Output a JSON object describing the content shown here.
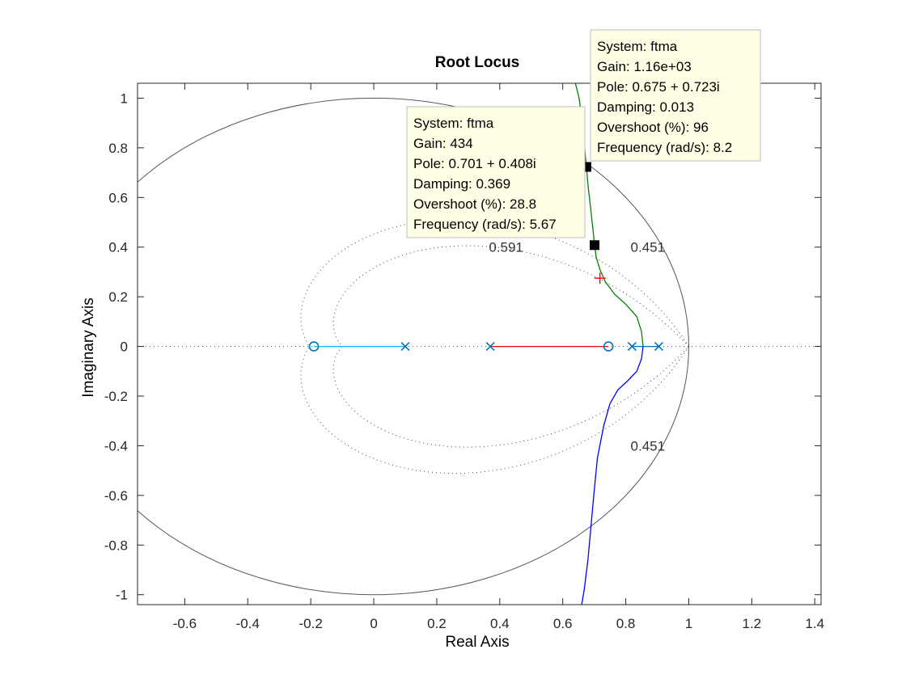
{
  "chart_data": {
    "type": "line",
    "title": "Root Locus",
    "xlabel": "Real Axis",
    "ylabel": "Imaginary Axis",
    "xlim": [
      -0.75,
      1.42
    ],
    "ylim": [
      -1.04,
      1.06
    ],
    "x_ticks": [
      -0.6,
      -0.4,
      -0.2,
      0,
      0.2,
      0.4,
      0.6,
      0.8,
      1,
      1.2,
      1.4
    ],
    "x_tick_labels": [
      "-0.6",
      "-0.4",
      "-0.2",
      "0",
      "0.2",
      "0.4",
      "0.6",
      "0.8",
      "1",
      "1.2",
      "1.4"
    ],
    "y_ticks": [
      1,
      0.8,
      0.6,
      0.4,
      0.2,
      0,
      -0.2,
      -0.4,
      -0.6,
      -0.8,
      -1
    ],
    "y_tick_labels": [
      "1",
      "0.8",
      "0.6",
      "0.4",
      "0.2",
      "0",
      "-0.2",
      "-0.4",
      "-0.6",
      "-0.8",
      "-1"
    ],
    "grid": "zgrid",
    "unit_circle": true,
    "poles": [
      [
        0.1,
        0
      ],
      [
        0.37,
        0
      ],
      [
        0.82,
        0
      ],
      [
        0.905,
        0
      ]
    ],
    "zeros": [
      [
        -0.19,
        0
      ],
      [
        0.745,
        0
      ]
    ],
    "series": [
      {
        "color": "#00bfff",
        "points": [
          [
            -0.19,
            0
          ],
          [
            0.1,
            0
          ]
        ]
      },
      {
        "color": "#0072bd",
        "points": [
          [
            0.82,
            0
          ],
          [
            0.905,
            0
          ]
        ]
      },
      {
        "color": "#ff0000",
        "points": [
          [
            0.37,
            0
          ],
          [
            0.745,
            0
          ]
        ]
      },
      {
        "color": "#008000",
        "points": [
          [
            0.855,
            0
          ],
          [
            0.85,
            0.06
          ],
          [
            0.835,
            0.12
          ],
          [
            0.8,
            0.17
          ],
          [
            0.765,
            0.21
          ],
          [
            0.735,
            0.26
          ],
          [
            0.718,
            0.31
          ],
          [
            0.706,
            0.36
          ],
          [
            0.701,
            0.408
          ],
          [
            0.695,
            0.48
          ],
          [
            0.688,
            0.56
          ],
          [
            0.681,
            0.64
          ],
          [
            0.675,
            0.723
          ],
          [
            0.668,
            0.82
          ],
          [
            0.66,
            0.92
          ],
          [
            0.652,
            1.0
          ],
          [
            0.64,
            1.06
          ]
        ]
      },
      {
        "color": "#0000ff",
        "points": [
          [
            0.855,
            0
          ],
          [
            0.85,
            -0.05
          ],
          [
            0.835,
            -0.1
          ],
          [
            0.805,
            -0.14
          ],
          [
            0.775,
            -0.175
          ],
          [
            0.75,
            -0.23
          ],
          [
            0.73,
            -0.32
          ],
          [
            0.71,
            -0.45
          ],
          [
            0.7,
            -0.58
          ],
          [
            0.69,
            -0.72
          ],
          [
            0.68,
            -0.86
          ],
          [
            0.668,
            -0.98
          ],
          [
            0.66,
            -1.04
          ]
        ]
      }
    ],
    "zeta_curves": [
      0.591,
      0.451
    ],
    "grid_labels": [
      {
        "text": "0.591",
        "x": 0.42,
        "y": 0.4
      },
      {
        "text": "0.451",
        "x": 0.87,
        "y": 0.4
      },
      {
        "text": "0.451",
        "x": 0.87,
        "y": -0.4
      }
    ],
    "markers": [
      {
        "x": 0.701,
        "y": 0.408,
        "style": "square"
      },
      {
        "x": 0.675,
        "y": 0.723,
        "style": "square"
      },
      {
        "x": 0.718,
        "y": 0.275,
        "style": "cross-red"
      }
    ],
    "datatips": [
      {
        "lines": [
          "System: ftma",
          "Gain: 434",
          "Pole: 0.701 + 0.408i",
          "Damping: 0.369",
          "Overshoot (%): 28.8",
          "Frequency (rad/s): 5.67"
        ]
      },
      {
        "lines": [
          "System: ftma",
          "Gain: 1.16e+03",
          "Pole: 0.675 + 0.723i",
          "Damping: 0.013",
          "Overshoot (%): 96",
          "Frequency (rad/s): 8.2"
        ]
      }
    ]
  }
}
